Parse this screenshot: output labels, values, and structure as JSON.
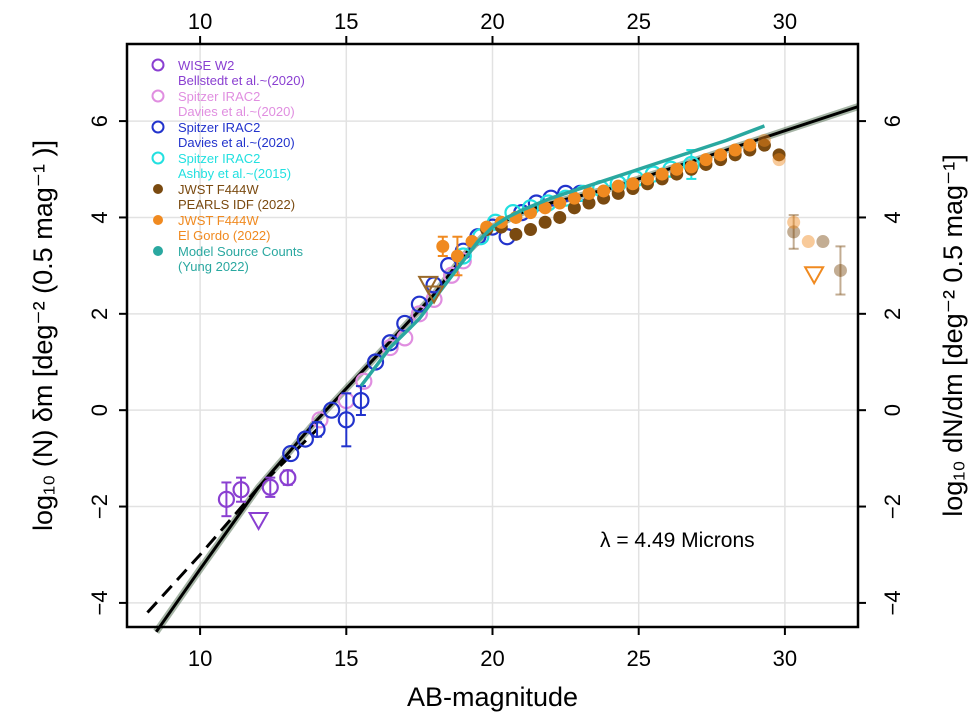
{
  "chart_data": {
    "type": "scatter",
    "xlabel": "AB-magnitude",
    "ylabel_left": "log₁₀ (N) δm [deg⁻² (0.5 mag⁻¹ )]",
    "ylabel_right": "log₁₀ dN/dm [deg⁻² 0.5 mag⁻¹]",
    "annotation": "λ = 4.49 Microns",
    "xlim": [
      7.5,
      32.5
    ],
    "ylim": [
      -4.5,
      7.6
    ],
    "x_ticks": [
      "10",
      "15",
      "20",
      "25",
      "30"
    ],
    "y_ticks": [
      "−4",
      "−2",
      "0",
      "2",
      "4",
      "6"
    ],
    "grid": true,
    "legend_placement": "top-left",
    "colors": {
      "wise": "#8a3fd1",
      "spitzer_davies_pink": "#e08ee0",
      "spitzer_davies_blue": "#2233cc",
      "spitzer_ashby": "#22e0e0",
      "jwst_pearls": "#7a4a10",
      "jwst_elgordo": "#f08a20",
      "model": "#2aa8a0",
      "fit": "#000000"
    },
    "series": [
      {
        "key": "wise",
        "name": "WISE W2",
        "sub": "Bellstedt et al.~(2020)",
        "marker": "open-circle",
        "color": "#8a3fd1",
        "x": [
          10.9,
          11.4,
          12.4,
          13.0
        ],
        "y": [
          -1.85,
          -1.65,
          -1.6,
          -1.4
        ],
        "err": [
          0.35,
          0.25,
          0.2,
          0.15
        ]
      },
      {
        "key": "davies_pink",
        "name": "Spitzer IRAC2",
        "sub": "Davies et al.~(2020)",
        "marker": "open-circle",
        "color": "#e08ee0",
        "x": [
          14.1,
          15.0,
          15.6,
          16.5,
          17.0,
          17.5,
          18.0,
          18.6,
          19.0
        ],
        "y": [
          -0.2,
          0.2,
          0.6,
          1.3,
          1.5,
          2.0,
          2.3,
          2.8,
          3.1
        ],
        "err": [
          0,
          0,
          0,
          0,
          0,
          0,
          0,
          0,
          0
        ]
      },
      {
        "key": "davies_blue",
        "name": "Spitzer IRAC2",
        "sub": "Davies et al.~(2020)",
        "marker": "open-circle",
        "color": "#2233cc",
        "x": [
          13.1,
          13.6,
          14.0,
          14.5,
          15.0,
          15.5,
          16.0,
          16.5,
          17.0,
          17.5,
          18.0,
          18.5,
          19.0,
          19.5,
          20.0,
          20.5,
          21.0,
          21.5,
          22.0,
          22.5,
          23.0
        ],
        "y": [
          -0.9,
          -0.6,
          -0.4,
          0.0,
          -0.2,
          0.2,
          1.0,
          1.4,
          1.8,
          2.2,
          2.6,
          3.0,
          3.3,
          3.6,
          3.8,
          3.6,
          4.1,
          4.3,
          4.4,
          4.5,
          4.5
        ],
        "err": [
          0,
          0,
          0.15,
          0,
          0.55,
          0.3,
          0,
          0,
          0,
          0,
          0,
          0,
          0,
          0,
          0,
          0,
          0,
          0,
          0,
          0,
          0
        ]
      },
      {
        "key": "ashby",
        "name": "Spitzer IRAC2",
        "sub": "Ashby et al.~(2015)",
        "marker": "open-circle",
        "color": "#22e0e0",
        "x": [
          19.0,
          19.6,
          20.1,
          20.7,
          21.3,
          21.9,
          22.5,
          23.1,
          23.7,
          24.3,
          24.9,
          25.5,
          26.1,
          26.8
        ],
        "y": [
          3.2,
          3.6,
          3.9,
          4.1,
          4.2,
          4.3,
          4.4,
          4.5,
          4.6,
          4.7,
          4.8,
          4.9,
          5.0,
          5.1
        ],
        "err": [
          0,
          0,
          0,
          0,
          0,
          0,
          0,
          0,
          0,
          0,
          0,
          0,
          0,
          0.3
        ]
      },
      {
        "key": "pearls",
        "name": "JWST F444W",
        "sub": "PEARLS IDF (2022)",
        "marker": "filled-circle",
        "color": "#7a4a10",
        "x": [
          19.8,
          20.3,
          20.8,
          21.3,
          21.8,
          22.3,
          22.8,
          23.3,
          23.8,
          24.3,
          24.8,
          25.3,
          25.8,
          26.3,
          26.8,
          27.3,
          27.8,
          28.3,
          28.8,
          29.3,
          29.8,
          30.3,
          31.3,
          31.9
        ],
        "y": [
          3.75,
          3.8,
          3.65,
          3.75,
          3.9,
          4.0,
          4.2,
          4.3,
          4.4,
          4.5,
          4.6,
          4.7,
          4.8,
          4.9,
          5.0,
          5.1,
          5.2,
          5.3,
          5.4,
          5.5,
          5.3,
          3.7,
          3.5,
          2.9
        ],
        "err": [
          0,
          0,
          0,
          0,
          0,
          0,
          0,
          0,
          0,
          0,
          0,
          0,
          0,
          0,
          0,
          0,
          0,
          0,
          0,
          0,
          0,
          0.35,
          0,
          0.5
        ],
        "faded_from": 21
      },
      {
        "key": "elgordo",
        "name": "JWST F444W",
        "sub": "El Gordo (2022)",
        "marker": "filled-circle",
        "color": "#f08a20",
        "x": [
          18.3,
          18.8,
          19.3,
          19.8,
          20.3,
          20.8,
          21.3,
          21.8,
          22.3,
          22.8,
          23.3,
          23.8,
          24.3,
          24.8,
          25.3,
          25.8,
          26.3,
          26.8,
          27.3,
          27.8,
          28.3,
          28.8,
          29.3,
          29.8,
          30.3,
          30.8
        ],
        "y": [
          3.4,
          3.2,
          3.5,
          3.8,
          3.9,
          4.0,
          4.1,
          4.2,
          4.3,
          4.4,
          4.5,
          4.55,
          4.65,
          4.7,
          4.8,
          4.9,
          5.0,
          5.05,
          5.2,
          5.3,
          5.4,
          5.5,
          5.6,
          5.2,
          3.9,
          3.5
        ],
        "err": [
          0.2,
          0.4,
          0,
          0,
          0,
          0,
          0,
          0,
          0,
          0,
          0,
          0,
          0,
          0,
          0,
          0,
          0,
          0,
          0,
          0,
          0,
          0,
          0,
          0,
          0,
          0
        ],
        "faded_from": 22
      },
      {
        "key": "model",
        "name": "Model Source Counts",
        "sub": "(Yung 2022)",
        "marker": "filled-circle",
        "color": "#2aa8a0",
        "x": [
          15.5,
          16.0,
          16.5,
          17.0,
          17.5,
          18.0,
          18.5,
          19.0,
          19.5,
          20.0,
          20.5,
          21.0,
          22.0,
          23.0,
          24.0,
          25.0,
          26.0,
          27.0,
          28.0,
          29.3
        ],
        "y": [
          0.5,
          0.9,
          1.3,
          1.6,
          1.9,
          2.3,
          2.7,
          3.1,
          3.5,
          3.8,
          4.0,
          4.15,
          4.4,
          4.6,
          4.8,
          5.0,
          5.2,
          5.4,
          5.6,
          5.9
        ],
        "err": [],
        "line": true
      }
    ],
    "upper_limits": [
      {
        "x": 12.0,
        "y": -2.3,
        "color": "#8a3fd1"
      },
      {
        "x": 17.8,
        "y": 2.6,
        "color": "#9a6a2a"
      },
      {
        "x": 18.0,
        "y": 2.4,
        "color": "#9a6a2a"
      },
      {
        "x": 31.0,
        "y": 2.8,
        "color": "#f08a20"
      }
    ],
    "fit_solid": {
      "x": [
        8.5,
        10,
        12,
        14,
        16,
        18,
        19,
        20,
        21,
        22,
        24,
        26,
        28,
        30,
        32.5
      ],
      "y": [
        -4.6,
        -3.3,
        -1.6,
        -0.2,
        1.1,
        2.4,
        3.2,
        3.8,
        4.1,
        4.3,
        4.6,
        5.0,
        5.4,
        5.8,
        6.3
      ]
    },
    "fit_dashed": {
      "x": [
        8.2,
        10,
        12,
        14
      ],
      "y": [
        -4.2,
        -3.0,
        -1.6,
        -0.4
      ]
    }
  }
}
